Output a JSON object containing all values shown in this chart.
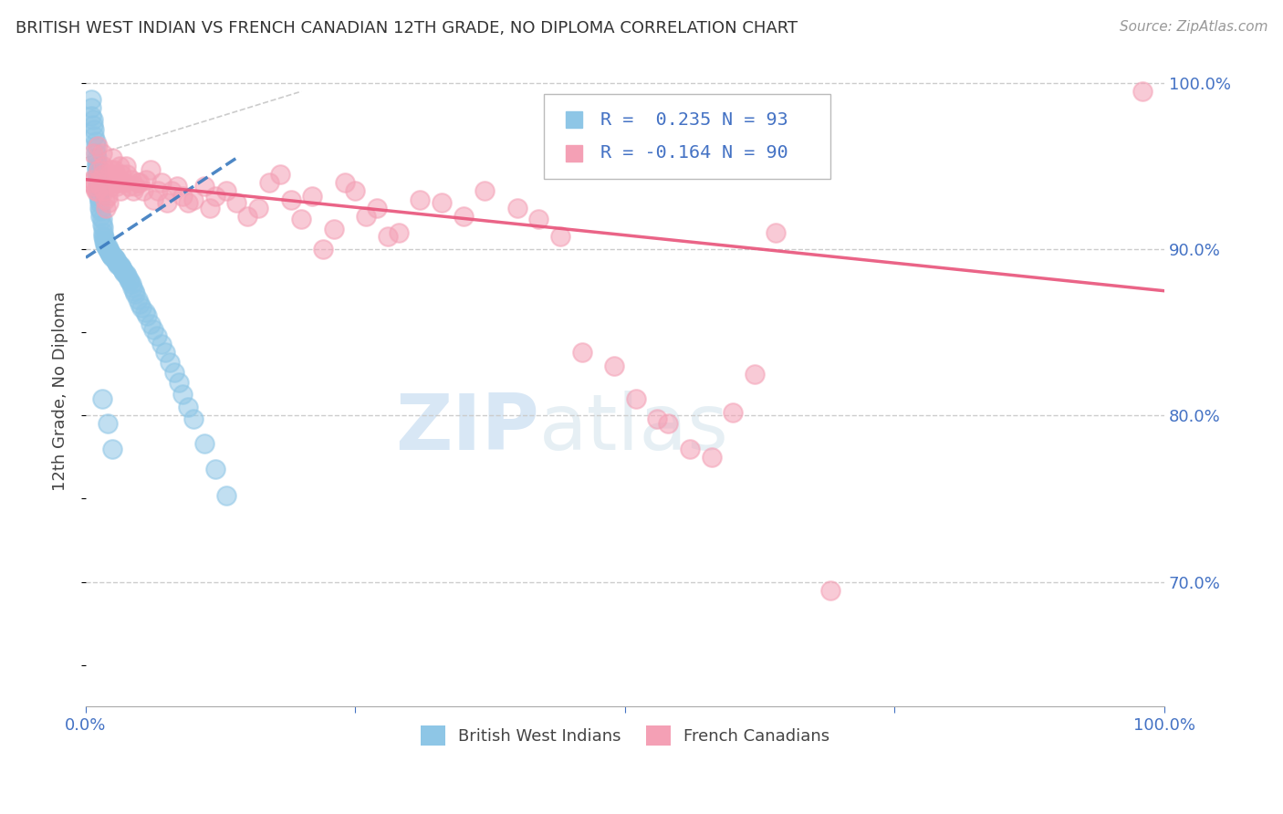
{
  "title": "BRITISH WEST INDIAN VS FRENCH CANADIAN 12TH GRADE, NO DIPLOMA CORRELATION CHART",
  "source": "Source: ZipAtlas.com",
  "ylabel": "12th Grade, No Diploma",
  "legend_blue_r": "R =  0.235",
  "legend_blue_n": "N = 93",
  "legend_pink_r": "R = -0.164",
  "legend_pink_n": "N = 90",
  "blue_color": "#8ec6e6",
  "pink_color": "#f4a0b5",
  "blue_line_color": "#3a7abf",
  "pink_line_color": "#e8537a",
  "title_color": "#333333",
  "source_color": "#999999",
  "axis_label_color": "#4472c4",
  "right_tick_color": "#4472c4",
  "legend_r_color": "#4472c4",
  "grid_color": "#cccccc",
  "diagonal_color": "#aaaaaa",
  "blue_scatter_x": [
    0.005,
    0.005,
    0.005,
    0.007,
    0.007,
    0.008,
    0.008,
    0.009,
    0.009,
    0.009,
    0.01,
    0.01,
    0.01,
    0.01,
    0.01,
    0.011,
    0.011,
    0.012,
    0.012,
    0.012,
    0.013,
    0.013,
    0.013,
    0.014,
    0.014,
    0.015,
    0.015,
    0.016,
    0.016,
    0.016,
    0.017,
    0.017,
    0.018,
    0.018,
    0.019,
    0.019,
    0.02,
    0.02,
    0.02,
    0.021,
    0.021,
    0.022,
    0.022,
    0.023,
    0.023,
    0.024,
    0.024,
    0.025,
    0.025,
    0.026,
    0.026,
    0.027,
    0.028,
    0.028,
    0.029,
    0.03,
    0.03,
    0.031,
    0.032,
    0.033,
    0.034,
    0.035,
    0.036,
    0.037,
    0.038,
    0.04,
    0.041,
    0.042,
    0.043,
    0.045,
    0.046,
    0.048,
    0.05,
    0.052,
    0.055,
    0.057,
    0.06,
    0.063,
    0.066,
    0.07,
    0.074,
    0.078,
    0.082,
    0.086,
    0.09,
    0.095,
    0.1,
    0.11,
    0.12,
    0.13,
    0.015,
    0.02,
    0.025
  ],
  "blue_scatter_y": [
    0.99,
    0.985,
    0.98,
    0.978,
    0.975,
    0.972,
    0.968,
    0.965,
    0.962,
    0.958,
    0.955,
    0.952,
    0.95,
    0.948,
    0.945,
    0.943,
    0.94,
    0.938,
    0.935,
    0.932,
    0.93,
    0.928,
    0.925,
    0.923,
    0.92,
    0.918,
    0.915,
    0.913,
    0.91,
    0.908,
    0.907,
    0.905,
    0.905,
    0.903,
    0.903,
    0.902,
    0.902,
    0.9,
    0.9,
    0.9,
    0.899,
    0.899,
    0.898,
    0.898,
    0.897,
    0.897,
    0.896,
    0.896,
    0.895,
    0.895,
    0.895,
    0.894,
    0.894,
    0.893,
    0.892,
    0.892,
    0.891,
    0.89,
    0.89,
    0.889,
    0.888,
    0.887,
    0.886,
    0.885,
    0.884,
    0.882,
    0.881,
    0.879,
    0.877,
    0.875,
    0.873,
    0.87,
    0.867,
    0.865,
    0.862,
    0.86,
    0.855,
    0.852,
    0.848,
    0.843,
    0.838,
    0.832,
    0.826,
    0.82,
    0.813,
    0.805,
    0.798,
    0.783,
    0.768,
    0.752,
    0.81,
    0.795,
    0.78
  ],
  "pink_scatter_x": [
    0.005,
    0.006,
    0.007,
    0.008,
    0.009,
    0.01,
    0.011,
    0.012,
    0.013,
    0.014,
    0.015,
    0.016,
    0.016,
    0.017,
    0.018,
    0.019,
    0.02,
    0.021,
    0.022,
    0.023,
    0.024,
    0.025,
    0.026,
    0.027,
    0.028,
    0.029,
    0.03,
    0.031,
    0.032,
    0.033,
    0.035,
    0.037,
    0.038,
    0.04,
    0.042,
    0.044,
    0.046,
    0.048,
    0.05,
    0.053,
    0.056,
    0.06,
    0.063,
    0.067,
    0.07,
    0.075,
    0.08,
    0.085,
    0.09,
    0.095,
    0.1,
    0.11,
    0.115,
    0.12,
    0.13,
    0.14,
    0.15,
    0.16,
    0.17,
    0.18,
    0.19,
    0.2,
    0.21,
    0.22,
    0.23,
    0.24,
    0.25,
    0.26,
    0.27,
    0.28,
    0.29,
    0.31,
    0.33,
    0.35,
    0.37,
    0.4,
    0.42,
    0.44,
    0.46,
    0.49,
    0.51,
    0.53,
    0.54,
    0.56,
    0.58,
    0.6,
    0.62,
    0.64,
    0.69,
    0.98
  ],
  "pink_scatter_y": [
    0.94,
    0.942,
    0.958,
    0.938,
    0.935,
    0.935,
    0.962,
    0.948,
    0.942,
    0.938,
    0.958,
    0.945,
    0.95,
    0.935,
    0.93,
    0.925,
    0.932,
    0.928,
    0.945,
    0.948,
    0.938,
    0.955,
    0.948,
    0.94,
    0.945,
    0.938,
    0.94,
    0.95,
    0.935,
    0.945,
    0.94,
    0.95,
    0.945,
    0.938,
    0.942,
    0.935,
    0.938,
    0.94,
    0.94,
    0.935,
    0.942,
    0.948,
    0.93,
    0.935,
    0.94,
    0.928,
    0.935,
    0.938,
    0.932,
    0.928,
    0.93,
    0.938,
    0.925,
    0.932,
    0.935,
    0.928,
    0.92,
    0.925,
    0.94,
    0.945,
    0.93,
    0.918,
    0.932,
    0.9,
    0.912,
    0.94,
    0.935,
    0.92,
    0.925,
    0.908,
    0.91,
    0.93,
    0.928,
    0.92,
    0.935,
    0.925,
    0.918,
    0.908,
    0.838,
    0.83,
    0.81,
    0.798,
    0.795,
    0.78,
    0.775,
    0.802,
    0.825,
    0.91,
    0.695,
    0.995
  ],
  "xlim": [
    0.0,
    1.0
  ],
  "ylim": [
    0.625,
    1.005
  ],
  "blue_trend_x": [
    0.0,
    0.14
  ],
  "blue_trend_y": [
    0.895,
    0.955
  ],
  "pink_trend_x": [
    0.0,
    1.0
  ],
  "pink_trend_y": [
    0.942,
    0.875
  ]
}
